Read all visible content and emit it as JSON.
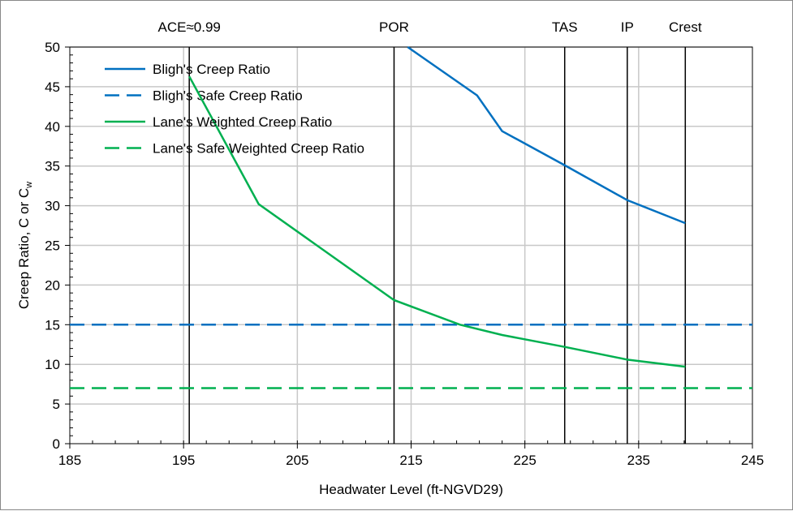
{
  "chart_data": {
    "type": "line",
    "xlabel": "Headwater Level (ft-NGVD29)",
    "ylabel": "Creep Ratio, C or C",
    "ylabel_sub": "w",
    "xlim": [
      185,
      245
    ],
    "ylim": [
      0,
      50
    ],
    "xticks": [
      185,
      195,
      205,
      215,
      225,
      235,
      245
    ],
    "yticks": [
      0,
      5,
      10,
      15,
      20,
      25,
      30,
      35,
      40,
      45,
      50
    ],
    "grid": true,
    "legend_position": "top-left",
    "reference_lines": [
      {
        "label": "ACE≈0.99",
        "x": 195.5
      },
      {
        "label": "POR",
        "x": 213.5
      },
      {
        "label": "TAS",
        "x": 228.5
      },
      {
        "label": "IP",
        "x": 234.0
      },
      {
        "label": "Crest",
        "x": 239.1
      }
    ],
    "series": [
      {
        "name": "Bligh's Creep Ratio",
        "color": "#0070C0",
        "dash": false,
        "x": [
          214.7,
          220.8,
          223.0,
          228.5,
          234.0,
          239.1
        ],
        "y": [
          50,
          43.9,
          39.4,
          35.1,
          30.7,
          27.8
        ]
      },
      {
        "name": "Bligh's Safe Creep Ratio",
        "color": "#0070C0",
        "dash": true,
        "x": [
          185,
          245
        ],
        "y": [
          15,
          15
        ]
      },
      {
        "name": "Lane's Weighted Creep Ratio",
        "color": "#00B050",
        "dash": false,
        "x": [
          195.5,
          201.6,
          213.5,
          219.3,
          223.0,
          228.5,
          234.0,
          239.1
        ],
        "y": [
          46.3,
          30.2,
          18.1,
          15.0,
          13.7,
          12.2,
          10.6,
          9.7
        ]
      },
      {
        "name": "Lane's Safe Weighted Creep Ratio",
        "color": "#00B050",
        "dash": true,
        "x": [
          185,
          245
        ],
        "y": [
          7,
          7
        ]
      }
    ]
  }
}
